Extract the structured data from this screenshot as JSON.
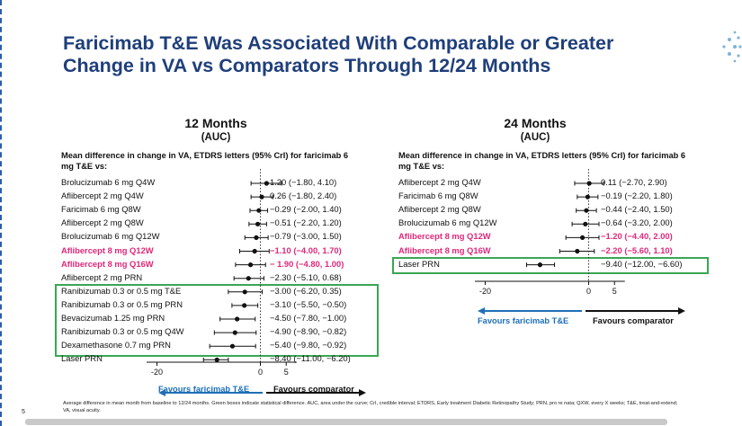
{
  "slide": {
    "title": "Faricimab T&E Was Associated With Comparable or Greater Change in VA vs Comparators Through 12/24 Months",
    "page_number": "5",
    "footnote": "Average difference in mean month from baseline to 12/24 months. Green boxes indicate statistical difference. AUC, area under the curve; CrI, credible interval; ETDRS, Early treatment Diabetic Retinopathy Study; PRN, pro re nata; QXW, every X weeks; T&E, treat-and-extend; VA, visual acuity."
  },
  "colors": {
    "title": "#1f3f7a",
    "highlight": "#e0287a",
    "green_box": "#3aa655",
    "favours_left": "#1e6fb8"
  },
  "chart_data": [
    {
      "type": "forest",
      "title": "12 Months",
      "subtitle": "(AUC)",
      "ylabel": "Mean difference in change in VA, ETDRS letters (95% CrI) for faricimab 6 mg T&E vs:",
      "xlim": [
        -22,
        7
      ],
      "xticks": [
        -20,
        0,
        5
      ],
      "reference_line": 0,
      "favours_left": "Favours faricimab T&E",
      "favours_right": "Favours comparator",
      "rows": [
        {
          "label": "Brolucizumab 6 mg Q4W",
          "est": 1.2,
          "lo": -1.8,
          "hi": 4.1,
          "text": "1.20 (−1.80, 4.10)",
          "highlight": false,
          "significant": false
        },
        {
          "label": "Aflibercept 2 mg Q4W",
          "est": 0.26,
          "lo": -1.8,
          "hi": 2.4,
          "text": "0.26 (−1.80, 2.40)",
          "highlight": false,
          "significant": false
        },
        {
          "label": "Faricimab 6 mg Q8W",
          "est": -0.29,
          "lo": -2.0,
          "hi": 1.4,
          "text": "−0.29 (−2.00, 1.40)",
          "highlight": false,
          "significant": false
        },
        {
          "label": "Aflibercept 2 mg Q8W",
          "est": -0.51,
          "lo": -2.2,
          "hi": 1.2,
          "text": "−0.51 (−2.20, 1.20)",
          "highlight": false,
          "significant": false
        },
        {
          "label": "Brolucizumab 6 mg Q12W",
          "est": -0.79,
          "lo": -3.0,
          "hi": 1.5,
          "text": "−0.79 (−3.00, 1.50)",
          "highlight": false,
          "significant": false
        },
        {
          "label": "Aflibercept 8 mg Q12W",
          "est": -1.1,
          "lo": -4.0,
          "hi": 1.7,
          "text": "−1.10 (−4.00, 1.70)",
          "highlight": true,
          "significant": false
        },
        {
          "label": "Aflibercept 8 mg Q16W",
          "est": -1.9,
          "lo": -4.8,
          "hi": 1.0,
          "text": "− 1.90 (−4.80, 1.00)",
          "highlight": true,
          "significant": false
        },
        {
          "label": "Aflibercept 2 mg PRN",
          "est": -2.3,
          "lo": -5.1,
          "hi": 0.68,
          "text": "−2.30 (−5.10, 0.68)",
          "highlight": false,
          "significant": false
        },
        {
          "label": "Ranibizumab 0.3 or 0.5 mg T&E",
          "est": -3.0,
          "lo": -6.2,
          "hi": 0.35,
          "text": "−3.00 (−6.20, 0.35)",
          "highlight": false,
          "significant": false
        },
        {
          "label": "Ranibizumab 0.3 or 0.5 mg PRN",
          "est": -3.1,
          "lo": -5.5,
          "hi": -0.5,
          "text": "−3.10 (−5.50, −0.50)",
          "highlight": false,
          "significant": true
        },
        {
          "label": "Bevacizumab 1.25 mg PRN",
          "est": -4.5,
          "lo": -7.8,
          "hi": -1.0,
          "text": "−4.50 (−7.80, −1.00)",
          "highlight": false,
          "significant": true
        },
        {
          "label": "Ranibizumab 0.3 or 0.5 mg Q4W",
          "est": -4.9,
          "lo": -8.9,
          "hi": -0.82,
          "text": "−4.90 (−8.90, −0.82)",
          "highlight": false,
          "significant": true
        },
        {
          "label": "Dexamethasone 0.7 mg PRN",
          "est": -5.4,
          "lo": -9.8,
          "hi": -0.92,
          "text": "−5.40 (−9.80, −0.92)",
          "highlight": false,
          "significant": true
        },
        {
          "label": "Laser PRN",
          "est": -8.4,
          "lo": -11.0,
          "hi": -6.2,
          "text": "−8.40 (−11.00, −6.20)",
          "highlight": false,
          "significant": true
        }
      ]
    },
    {
      "type": "forest",
      "title": "24 Months",
      "subtitle": "(AUC)",
      "ylabel": "Mean difference in change in VA, ETDRS letters (95% CrI) for faricimab 6 mg T&E vs:",
      "xlim": [
        -22,
        7
      ],
      "xticks": [
        -20,
        0,
        5
      ],
      "reference_line": 0,
      "favours_left": "Favours faricimab T&E",
      "favours_right": "Favours comparator",
      "rows": [
        {
          "label": "Aflibercept 2 mg Q4W",
          "est": 0.11,
          "lo": -2.7,
          "hi": 2.9,
          "text": "0.11 (−2.70, 2.90)",
          "highlight": false,
          "significant": false
        },
        {
          "label": "Faricimab 6 mg Q8W",
          "est": -0.19,
          "lo": -2.2,
          "hi": 1.8,
          "text": "−0.19 (−2.20, 1.80)",
          "highlight": false,
          "significant": false
        },
        {
          "label": "Aflibercept 2 mg Q8W",
          "est": -0.44,
          "lo": -2.4,
          "hi": 1.5,
          "text": "−0.44 (−2.40, 1.50)",
          "highlight": false,
          "significant": false
        },
        {
          "label": "Brolucizumab 6 mg Q12W",
          "est": -0.64,
          "lo": -3.2,
          "hi": 2.0,
          "text": "−0.64 (−3.20, 2.00)",
          "highlight": false,
          "significant": false
        },
        {
          "label": "Aflibercept 8 mg Q12W",
          "est": -1.2,
          "lo": -4.4,
          "hi": 2.0,
          "text": "−1.20 (−4.40, 2.00)",
          "highlight": true,
          "significant": false
        },
        {
          "label": "Aflibercept 8 mg Q16W",
          "est": -2.2,
          "lo": -5.6,
          "hi": 1.1,
          "text": "−2.20 (−5.60, 1.10)",
          "highlight": true,
          "significant": false
        },
        {
          "label": "Laser PRN",
          "est": -9.4,
          "lo": -12.0,
          "hi": -6.6,
          "text": "−9.40 (−12.00, −6.60)",
          "highlight": false,
          "significant": true
        }
      ]
    }
  ]
}
